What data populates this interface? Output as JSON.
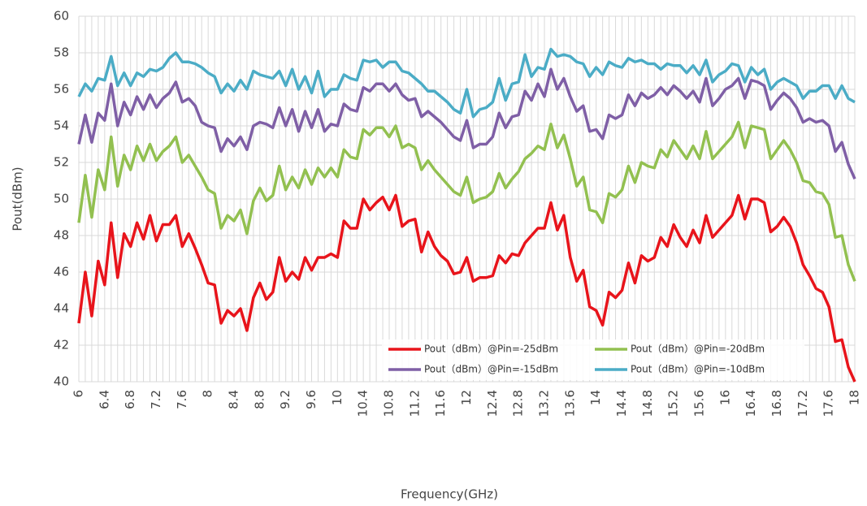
{
  "chart_data": {
    "type": "line",
    "x_label": "Frequency(GHz)",
    "y_label": "Pout(dBm)",
    "x": [
      6,
      6.1,
      6.2,
      6.3,
      6.4,
      6.5,
      6.6,
      6.7,
      6.8,
      6.9,
      7,
      7.1,
      7.2,
      7.3,
      7.4,
      7.5,
      7.6,
      7.7,
      7.8,
      7.9,
      8,
      8.1,
      8.2,
      8.3,
      8.4,
      8.5,
      8.6,
      8.7,
      8.8,
      8.9,
      9,
      9.1,
      9.2,
      9.3,
      9.4,
      9.5,
      9.6,
      9.7,
      9.8,
      9.9,
      10,
      10.1,
      10.2,
      10.3,
      10.4,
      10.5,
      10.6,
      10.7,
      10.8,
      10.9,
      11,
      11.1,
      11.2,
      11.3,
      11.4,
      11.5,
      11.6,
      11.7,
      11.8,
      11.9,
      12,
      12.1,
      12.2,
      12.3,
      12.4,
      12.5,
      12.6,
      12.7,
      12.8,
      12.9,
      13,
      13.1,
      13.2,
      13.3,
      13.4,
      13.5,
      13.6,
      13.7,
      13.8,
      13.9,
      14,
      14.1,
      14.2,
      14.3,
      14.4,
      14.5,
      14.6,
      14.7,
      14.8,
      14.9,
      15,
      15.1,
      15.2,
      15.3,
      15.4,
      15.5,
      15.6,
      15.7,
      15.8,
      15.9,
      16,
      16.1,
      16.2,
      16.3,
      16.4,
      16.5,
      16.6,
      16.7,
      16.8,
      16.9,
      17,
      17.1,
      17.2,
      17.3,
      17.4,
      17.5,
      17.6,
      17.7,
      17.8,
      17.9,
      18
    ],
    "xlim": [
      6,
      18
    ],
    "xticks": [
      6,
      6.4,
      6.8,
      7.2,
      7.6,
      8,
      8.4,
      8.8,
      9.2,
      9.6,
      10,
      10.4,
      10.8,
      11.2,
      11.6,
      12,
      12.4,
      12.8,
      13.2,
      13.6,
      14,
      14.4,
      14.8,
      15.2,
      15.6,
      16,
      16.4,
      16.8,
      17.2,
      17.6,
      18
    ],
    "ylim": [
      40,
      60
    ],
    "yticks": [
      40,
      42,
      44,
      46,
      48,
      50,
      52,
      54,
      56,
      58,
      60
    ],
    "grid": true,
    "legend": "lower right",
    "series": [
      {
        "name": "Pout（dBm）@Pin=-25dBm",
        "color": "#e8141b",
        "values": [
          43.2,
          46.0,
          43.6,
          46.6,
          45.3,
          48.7,
          45.7,
          48.1,
          47.4,
          48.7,
          47.8,
          49.1,
          47.7,
          48.6,
          48.6,
          49.1,
          47.4,
          48.1,
          47.3,
          46.4,
          45.4,
          45.3,
          43.2,
          43.9,
          43.6,
          44.0,
          42.8,
          44.6,
          45.4,
          44.5,
          44.9,
          46.8,
          45.5,
          46.0,
          45.6,
          46.8,
          46.1,
          46.8,
          46.8,
          47.0,
          46.8,
          48.8,
          48.4,
          48.4,
          50.0,
          49.4,
          49.8,
          50.1,
          49.4,
          50.2,
          48.5,
          48.8,
          48.9,
          47.1,
          48.2,
          47.4,
          46.9,
          46.6,
          45.9,
          46.0,
          46.8,
          45.5,
          45.7,
          45.7,
          45.8,
          46.9,
          46.5,
          47.0,
          46.9,
          47.6,
          48.0,
          48.4,
          48.4,
          49.8,
          48.3,
          49.1,
          46.8,
          45.5,
          46.1,
          44.1,
          43.9,
          43.1,
          44.9,
          44.6,
          45.0,
          46.5,
          45.4,
          46.9,
          46.6,
          46.8,
          47.9,
          47.4,
          48.6,
          47.9,
          47.4,
          48.3,
          47.6,
          49.1,
          47.9,
          48.3,
          48.7,
          49.1,
          50.2,
          48.9,
          50.0,
          50.0,
          49.8,
          48.2,
          48.5,
          49.0,
          48.5,
          47.6,
          46.4,
          45.8,
          45.1,
          44.9,
          44.1,
          42.2,
          42.3,
          40.8,
          40.0
        ]
      },
      {
        "name": "Pout（dBm）@Pin=-20dBm",
        "color": "#92c050",
        "values": [
          48.7,
          51.3,
          49.0,
          51.6,
          50.5,
          53.4,
          50.7,
          52.4,
          51.6,
          52.9,
          52.1,
          53.0,
          52.1,
          52.6,
          52.9,
          53.4,
          52.0,
          52.4,
          51.8,
          51.2,
          50.5,
          50.3,
          48.4,
          49.1,
          48.8,
          49.4,
          48.1,
          49.9,
          50.6,
          49.9,
          50.2,
          51.8,
          50.5,
          51.2,
          50.6,
          51.6,
          50.8,
          51.7,
          51.2,
          51.7,
          51.2,
          52.7,
          52.3,
          52.2,
          53.8,
          53.5,
          53.9,
          53.9,
          53.4,
          54.0,
          52.8,
          53.0,
          52.8,
          51.6,
          52.1,
          51.6,
          51.2,
          50.8,
          50.4,
          50.2,
          51.2,
          49.8,
          50.0,
          50.1,
          50.4,
          51.4,
          50.6,
          51.1,
          51.5,
          52.2,
          52.5,
          52.9,
          52.7,
          54.1,
          52.8,
          53.5,
          52.2,
          50.7,
          51.2,
          49.4,
          49.3,
          48.7,
          50.3,
          50.1,
          50.5,
          51.8,
          50.9,
          52.0,
          51.8,
          51.7,
          52.7,
          52.3,
          53.2,
          52.7,
          52.2,
          52.9,
          52.2,
          53.7,
          52.2,
          52.6,
          53.0,
          53.4,
          54.2,
          52.8,
          54.0,
          53.9,
          53.8,
          52.2,
          52.7,
          53.2,
          52.7,
          52.0,
          51.0,
          50.9,
          50.4,
          50.3,
          49.7,
          47.9,
          48.0,
          46.4,
          45.5
        ]
      },
      {
        "name": "Pout（dBm）@Pin=-15dBm",
        "color": "#7f5fa6",
        "values": [
          53.0,
          54.6,
          53.1,
          54.7,
          54.3,
          56.3,
          54.0,
          55.3,
          54.6,
          55.6,
          54.9,
          55.7,
          55.0,
          55.5,
          55.8,
          56.4,
          55.3,
          55.5,
          55.1,
          54.2,
          54.0,
          53.9,
          52.6,
          53.3,
          52.9,
          53.4,
          52.7,
          54.0,
          54.2,
          54.1,
          53.9,
          55.0,
          54.0,
          54.9,
          53.7,
          54.8,
          53.9,
          54.9,
          53.7,
          54.1,
          54.0,
          55.2,
          54.9,
          54.8,
          56.1,
          55.9,
          56.3,
          56.3,
          55.9,
          56.3,
          55.7,
          55.4,
          55.5,
          54.5,
          54.8,
          54.5,
          54.2,
          53.8,
          53.4,
          53.2,
          54.3,
          52.8,
          53.0,
          53.0,
          53.4,
          54.7,
          53.9,
          54.5,
          54.6,
          55.9,
          55.4,
          56.3,
          55.6,
          57.1,
          56.0,
          56.6,
          55.6,
          54.8,
          55.1,
          53.7,
          53.8,
          53.3,
          54.6,
          54.4,
          54.6,
          55.7,
          55.1,
          55.8,
          55.5,
          55.7,
          56.1,
          55.7,
          56.2,
          55.9,
          55.5,
          55.9,
          55.3,
          56.6,
          55.1,
          55.5,
          56.0,
          56.2,
          56.6,
          55.5,
          56.5,
          56.4,
          56.2,
          54.9,
          55.4,
          55.8,
          55.5,
          55.0,
          54.2,
          54.4,
          54.2,
          54.3,
          54.0,
          52.6,
          53.1,
          51.9,
          51.1
        ]
      },
      {
        "name": "Pout（dBm）@Pin=-10dBm",
        "color": "#4bacc6",
        "values": [
          55.6,
          56.3,
          55.9,
          56.6,
          56.5,
          57.8,
          56.2,
          56.9,
          56.2,
          56.9,
          56.7,
          57.1,
          57.0,
          57.2,
          57.7,
          58.0,
          57.5,
          57.5,
          57.4,
          57.2,
          56.9,
          56.7,
          55.8,
          56.3,
          55.9,
          56.5,
          56.0,
          57.0,
          56.8,
          56.7,
          56.6,
          57.0,
          56.2,
          57.1,
          56.0,
          56.7,
          55.8,
          57.0,
          55.6,
          56.0,
          56.0,
          56.8,
          56.6,
          56.5,
          57.6,
          57.5,
          57.6,
          57.2,
          57.5,
          57.5,
          57.0,
          56.9,
          56.6,
          56.3,
          55.9,
          55.9,
          55.6,
          55.3,
          54.9,
          54.7,
          56.0,
          54.5,
          54.9,
          55.0,
          55.3,
          56.6,
          55.4,
          56.3,
          56.4,
          57.9,
          56.7,
          57.2,
          57.1,
          58.2,
          57.8,
          57.9,
          57.8,
          57.5,
          57.4,
          56.7,
          57.2,
          56.8,
          57.5,
          57.3,
          57.2,
          57.7,
          57.5,
          57.6,
          57.4,
          57.4,
          57.1,
          57.4,
          57.3,
          57.3,
          56.9,
          57.3,
          56.8,
          57.6,
          56.4,
          56.8,
          57.0,
          57.4,
          57.3,
          56.4,
          57.2,
          56.8,
          57.1,
          56.0,
          56.4,
          56.6,
          56.4,
          56.2,
          55.5,
          55.9,
          55.9,
          56.2,
          56.2,
          55.5,
          56.2,
          55.5,
          55.3
        ]
      }
    ]
  }
}
